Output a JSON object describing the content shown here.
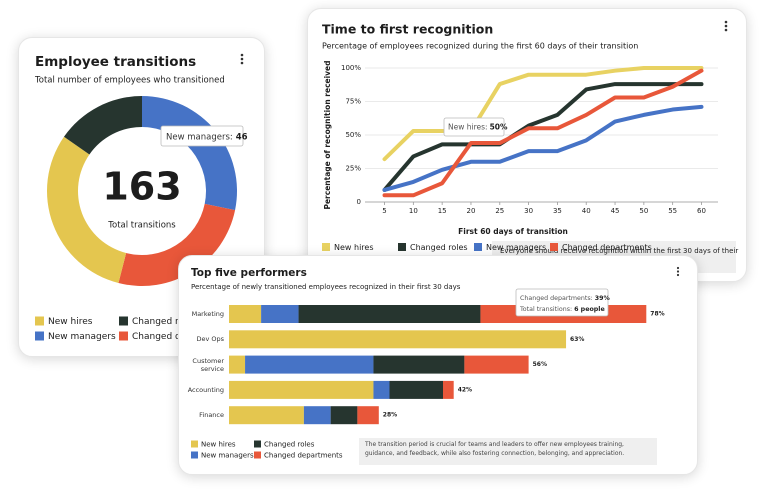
{
  "chart_data": [
    {
      "type": "pie",
      "title": "Employee transitions",
      "subtitle": "Total number of employees who transitioned",
      "total": 163,
      "total_label": "Total transitions",
      "tooltip_label": "New managers:",
      "categories": [
        "New hires",
        "New managers",
        "Changed roles",
        "Changed departments"
      ],
      "values": [
        50,
        46,
        25,
        42
      ],
      "colors": [
        "#e4c64f",
        "#4673c6",
        "#26352f",
        "#e8573a"
      ]
    },
    {
      "type": "line",
      "title": "Time to first recognition",
      "subtitle": "Percentage of employees recognized during the first 60 days of their transition",
      "x_label": "First 60 days of transition",
      "y_label": "Percentage of recognition received",
      "x": [
        5,
        10,
        15,
        20,
        25,
        30,
        35,
        40,
        45,
        50,
        55,
        60
      ],
      "xlim": [
        3,
        62
      ],
      "xticks": [
        5,
        10,
        15,
        20,
        25,
        30,
        35,
        40,
        45,
        50,
        55,
        60
      ],
      "ylim": [
        0,
        100
      ],
      "yticks": [
        0,
        {
          "value": 25,
          "label": "25%"
        },
        {
          "value": 50,
          "label": "50%"
        },
        {
          "value": 75,
          "label": "75%"
        },
        {
          "value": 100,
          "label": "100%"
        }
      ],
      "grid": true,
      "series": [
        {
          "name": "New hires",
          "color": "#e8d262",
          "values": [
            32,
            53,
            53,
            53,
            88,
            95,
            95,
            95,
            98,
            100,
            100,
            100
          ]
        },
        {
          "name": "Changed roles",
          "color": "#26352f",
          "values": [
            9,
            34,
            43,
            43,
            43,
            57,
            65,
            84,
            88,
            88,
            88,
            88
          ]
        },
        {
          "name": "New managers",
          "color": "#4673c6",
          "values": [
            9,
            15,
            24,
            30,
            30,
            38,
            38,
            46,
            60,
            65,
            69,
            71
          ]
        },
        {
          "name": "Changed departments",
          "color": "#e8573a",
          "values": [
            5,
            5,
            14,
            44,
            44,
            55,
            55,
            65,
            78,
            78,
            86,
            98
          ]
        }
      ],
      "tooltip_label": "New hires:",
      "tooltip_value": "50%",
      "note": "Everyone should receive recognition within the first 30 days of their"
    },
    {
      "type": "bar",
      "title": "Top five performers",
      "subtitle": "Percentage of newly transitioned employees recognized in their first 30 days",
      "categories": [
        "Marketing",
        "Dev Ops",
        "Customer service",
        "Accounting",
        "Finance"
      ],
      "series": [
        {
          "name": "New hires",
          "color": "#e4c64f",
          "values": [
            6,
            63,
            3,
            27,
            14
          ]
        },
        {
          "name": "New managers",
          "color": "#4673c6",
          "values": [
            7,
            0,
            24,
            3,
            5
          ]
        },
        {
          "name": "Changed roles",
          "color": "#26352f",
          "values": [
            34,
            0,
            17,
            10,
            5
          ]
        },
        {
          "name": "Changed departments",
          "color": "#e8573a",
          "values": [
            31,
            0,
            12,
            2,
            4
          ]
        }
      ],
      "total_labels": [
        "78%",
        "63%",
        "56%",
        "42%",
        "28%"
      ],
      "tooltip_line1_label": "Changed departments:",
      "tooltip_line1_value": "39%",
      "tooltip_line2_label": "Total transitions:",
      "tooltip_line2_value": "6 people",
      "note": "The transition period is crucial for teams and leaders to offer new employees training, guidance, and feedback, while also fostering connection, belonging, and appreciation."
    }
  ]
}
